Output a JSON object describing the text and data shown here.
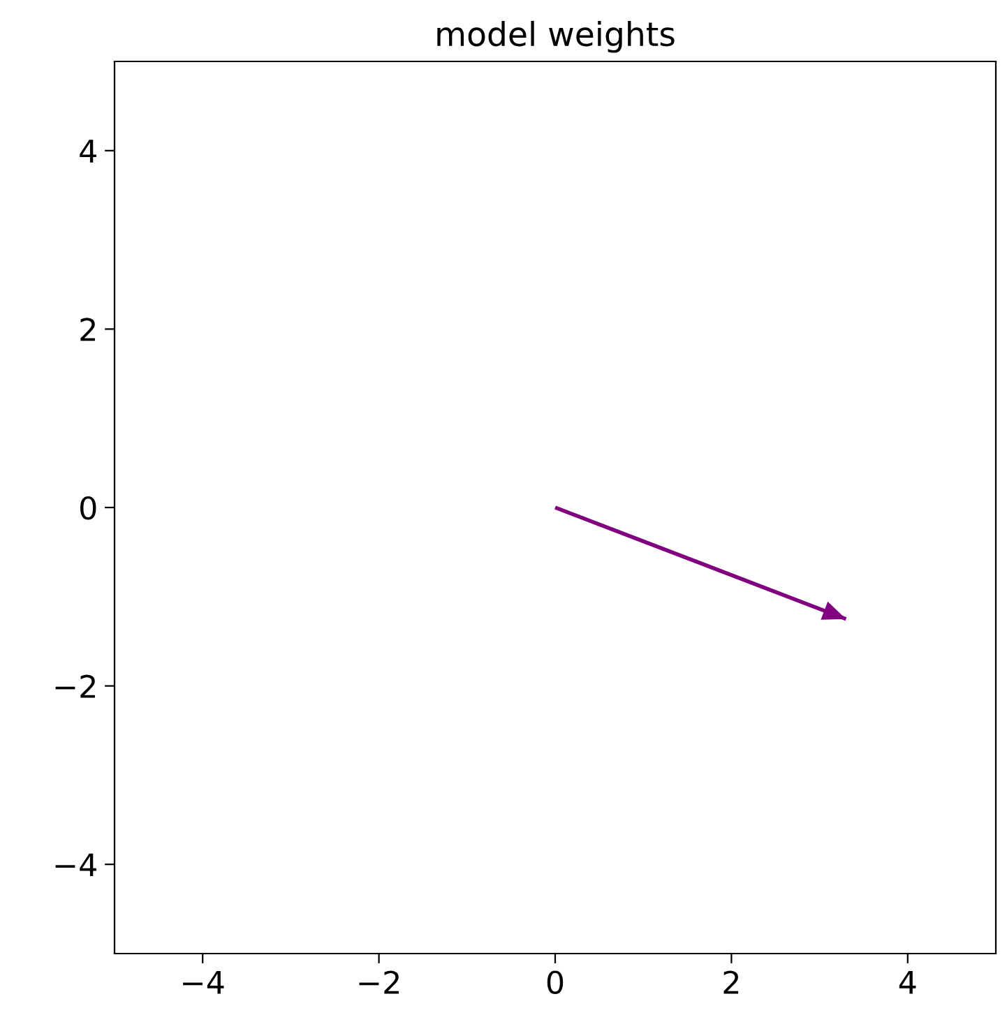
{
  "chart_data": {
    "type": "line",
    "title": "model weights",
    "x": [
      0,
      3.3
    ],
    "series": [
      {
        "color": "#800080",
        "values": [
          0,
          -1.25
        ]
      }
    ],
    "xlim": [
      -5,
      5
    ],
    "ylim": [
      -5,
      5
    ],
    "xticks": [
      {
        "value": -4,
        "label": "−4"
      },
      {
        "value": -2,
        "label": "−2"
      },
      0,
      2,
      4
    ],
    "yticks": [
      {
        "value": -4,
        "label": "−4"
      },
      {
        "value": -2,
        "label": "−2"
      },
      0,
      2,
      4
    ],
    "grid": false
  }
}
